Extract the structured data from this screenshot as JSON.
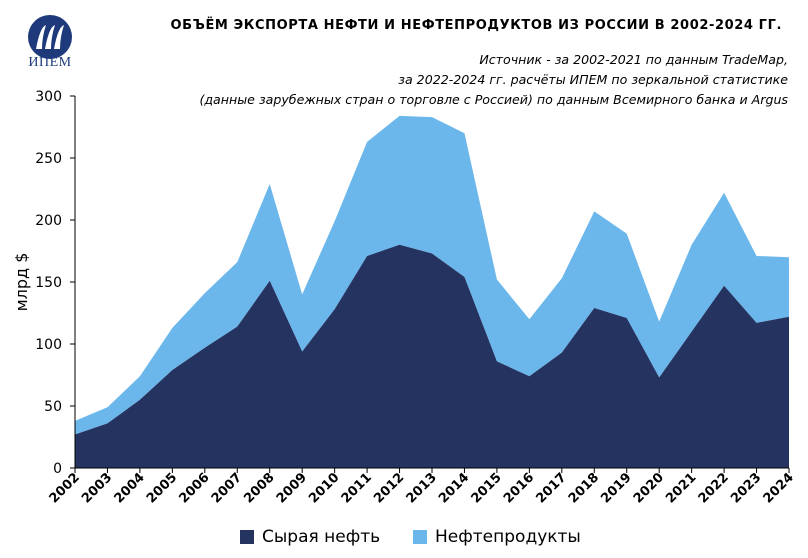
{
  "header": {
    "logo_text": "ИПЕМ",
    "title": "ОБЪЁМ ЭКСПОРТА НЕФТИ И НЕФТЕПРОДУКТОВ ИЗ РОССИИ В 2002-2024 ГГ.",
    "source_lines": [
      "Источник - за 2002-2021 по данным TradeMap,",
      "за 2022-2024 гг. расчёты ИПЕМ по зеркальной статистике",
      "(данные зарубежных стран о торговле с Россией) по данным Всемирного банка и Argus"
    ]
  },
  "colors": {
    "crude": "#253361",
    "products": "#6bb7ec",
    "logo": "#1f3a7a"
  },
  "chart_data": {
    "type": "area",
    "stacked": true,
    "title": "ОБЪЁМ ЭКСПОРТА НЕФТИ И НЕФТЕПРОДУКТОВ ИЗ РОССИИ В 2002-2024 ГГ.",
    "ylabel": "млрд $",
    "xlabel": "",
    "ylim": [
      0,
      300
    ],
    "yticks": [
      0,
      50,
      100,
      150,
      200,
      250,
      300
    ],
    "grid": false,
    "legend": "bottom",
    "categories": [
      "2002",
      "2003",
      "2004",
      "2005",
      "2006",
      "2007",
      "2008",
      "2009",
      "2010",
      "2011",
      "2012",
      "2013",
      "2014",
      "2015",
      "2016",
      "2017",
      "2018",
      "2019",
      "2020",
      "2021",
      "2022",
      "2023",
      "2024"
    ],
    "series": [
      {
        "name": "Сырая нефть",
        "color": "#253361",
        "values": [
          27,
          36,
          55,
          79,
          97,
          114,
          151,
          94,
          128,
          171,
          180,
          173,
          154,
          86,
          74,
          93,
          129,
          121,
          73,
          110,
          147,
          117,
          122
        ]
      },
      {
        "name": "Нефтепродукты",
        "color": "#6bb7ec",
        "values": [
          11,
          13,
          19,
          34,
          44,
          52,
          78,
          46,
          71,
          92,
          104,
          110,
          116,
          66,
          46,
          60,
          78,
          68,
          45,
          70,
          75,
          54,
          48
        ]
      }
    ]
  }
}
